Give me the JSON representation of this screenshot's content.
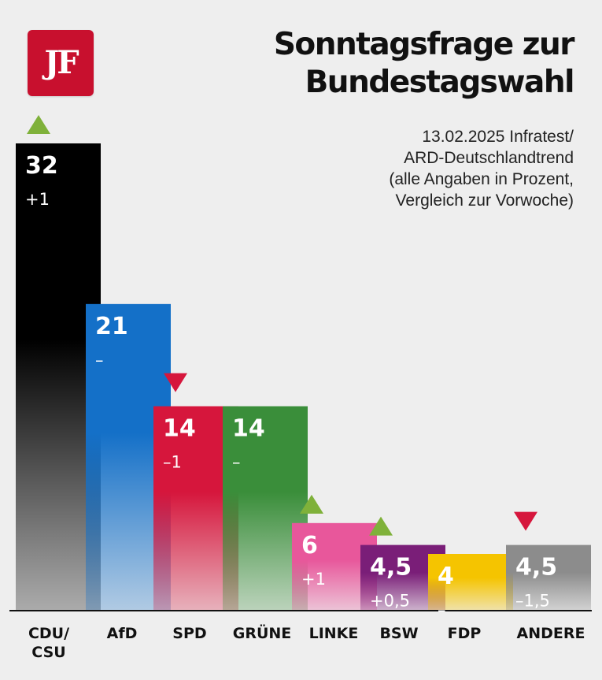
{
  "logo": {
    "text": "JF"
  },
  "header": {
    "title_line1": "Sonntagsfrage zur",
    "title_line2": "Bundestagswahl"
  },
  "source": {
    "line1": "13.02.2025 Infratest/",
    "line2": "ARD-Deutschlandtrend",
    "line3": "(alle Angaben in Prozent,",
    "line4": "Vergleich zur Vorwoche)"
  },
  "chart_data": {
    "type": "bar",
    "title": "Sonntagsfrage zur Bundestagswahl",
    "unit": "Prozent",
    "ylim": [
      0,
      32
    ],
    "grid": false,
    "bars": [
      {
        "category": "CDU/\nCSU",
        "value": 32,
        "value_label": "32",
        "change_label": "+1",
        "trend": "up",
        "color": "#000000"
      },
      {
        "category": "AfD",
        "value": 21,
        "value_label": "21",
        "change_label": "–",
        "trend": "none",
        "color": "#1470c8"
      },
      {
        "category": "SPD",
        "value": 14,
        "value_label": "14",
        "change_label": "–1",
        "trend": "down",
        "color": "#d6163c"
      },
      {
        "category": "GRÜNE",
        "value": 14,
        "value_label": "14",
        "change_label": "–",
        "trend": "none",
        "color": "#3a8e3a"
      },
      {
        "category": "LINKE",
        "value": 6,
        "value_label": "6",
        "change_label": "+1",
        "trend": "up",
        "color": "#e8579b"
      },
      {
        "category": "BSW",
        "value": 4.5,
        "value_label": "4,5",
        "change_label": "+0,5",
        "trend": "up",
        "color": "#7a1e78"
      },
      {
        "category": "FDP",
        "value": 4,
        "value_label": "4",
        "change_label": "–",
        "trend": "none",
        "color": "#f5c400"
      },
      {
        "category": "ANDERE",
        "value": 4.5,
        "value_label": "4,5",
        "change_label": "–1,5",
        "trend": "down",
        "color": "#8c8c8c"
      }
    ],
    "trend_colors": {
      "up": "#7fb13a",
      "down": "#d6163c"
    }
  }
}
